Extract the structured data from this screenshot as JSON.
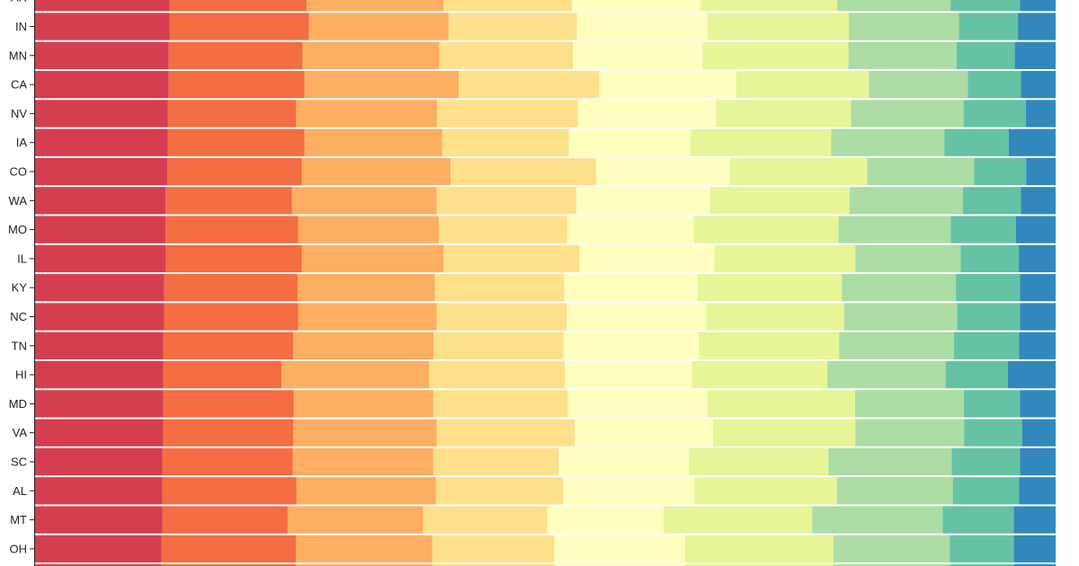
{
  "chart_data": {
    "type": "bar",
    "orientation": "horizontal",
    "stacked": true,
    "normalized": true,
    "categories": [
      "AR",
      "IN",
      "MN",
      "CA",
      "NV",
      "IA",
      "CO",
      "WA",
      "MO",
      "IL",
      "KY",
      "NC",
      "TN",
      "HI",
      "MD",
      "VA",
      "SC",
      "AL",
      "MT",
      "OH",
      "?"
    ],
    "partial_categories": [
      "AR",
      "?"
    ],
    "segment_colors": [
      "#d53e4f",
      "#f46d43",
      "#fdae61",
      "#fee08b",
      "#ffffbf",
      "#e6f598",
      "#abdda4",
      "#66c2a5",
      "#3288bd"
    ],
    "segments": [
      [
        13.2,
        13.4,
        13.4,
        12.6,
        12.6,
        13.4,
        11.1,
        6.8,
        3.5
      ],
      [
        13.2,
        13.7,
        13.7,
        12.6,
        12.8,
        13.9,
        10.8,
        5.8,
        3.7
      ],
      [
        13.1,
        13.1,
        13.4,
        13.1,
        12.7,
        14.3,
        10.6,
        5.7,
        4.0
      ],
      [
        13.1,
        13.3,
        15.1,
        13.8,
        13.4,
        13.0,
        9.7,
        5.2,
        3.4
      ],
      [
        13.0,
        12.5,
        13.8,
        13.8,
        13.5,
        13.2,
        11.0,
        6.1,
        2.9
      ],
      [
        13.0,
        13.4,
        13.5,
        12.4,
        11.9,
        13.8,
        11.1,
        6.3,
        4.6
      ],
      [
        13.0,
        13.2,
        14.6,
        14.3,
        13.1,
        13.5,
        10.5,
        5.1,
        2.9
      ],
      [
        12.8,
        12.4,
        14.2,
        13.7,
        13.1,
        13.7,
        11.1,
        5.7,
        3.4
      ],
      [
        12.8,
        13.0,
        13.8,
        12.6,
        12.4,
        14.2,
        11.0,
        6.4,
        3.9
      ],
      [
        12.8,
        13.3,
        13.9,
        13.3,
        13.2,
        13.8,
        10.3,
        5.7,
        3.6
      ],
      [
        12.7,
        13.1,
        13.5,
        12.7,
        13.1,
        14.2,
        11.2,
        6.3,
        3.5
      ],
      [
        12.7,
        13.2,
        13.6,
        12.8,
        13.7,
        13.6,
        11.1,
        6.2,
        3.5
      ],
      [
        12.6,
        12.8,
        13.8,
        12.8,
        13.3,
        13.8,
        11.3,
        6.4,
        3.6
      ],
      [
        12.6,
        11.6,
        14.5,
        13.3,
        12.5,
        13.3,
        11.6,
        6.1,
        4.7
      ],
      [
        12.6,
        12.8,
        13.7,
        13.2,
        13.7,
        14.5,
        10.7,
        5.5,
        3.5
      ],
      [
        12.6,
        12.8,
        14.1,
        13.6,
        13.6,
        14.0,
        10.7,
        5.7,
        3.3
      ],
      [
        12.5,
        12.8,
        13.8,
        12.3,
        12.8,
        13.7,
        12.1,
        6.7,
        3.5
      ],
      [
        12.5,
        13.2,
        13.7,
        12.5,
        12.9,
        14.0,
        11.4,
        6.5,
        3.6
      ],
      [
        12.5,
        12.3,
        13.3,
        12.2,
        11.4,
        14.6,
        12.8,
        7.0,
        4.1
      ],
      [
        12.4,
        13.2,
        13.4,
        12.0,
        12.8,
        14.6,
        11.4,
        6.3,
        4.1
      ]
    ]
  }
}
